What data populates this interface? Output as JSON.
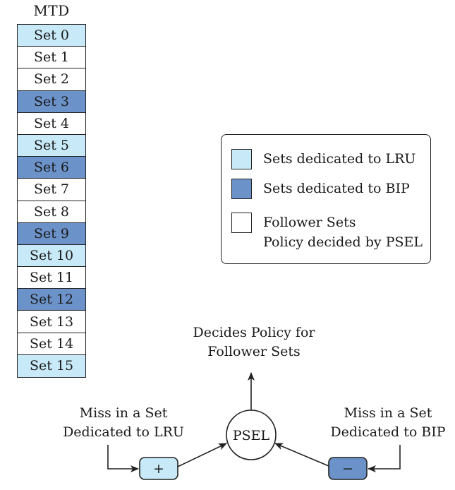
{
  "mtd": {
    "title": "MTD",
    "sets": [
      {
        "label": "Set 0",
        "kind": "lru"
      },
      {
        "label": "Set 1",
        "kind": "follower"
      },
      {
        "label": "Set 2",
        "kind": "follower"
      },
      {
        "label": "Set 3",
        "kind": "bip"
      },
      {
        "label": "Set 4",
        "kind": "follower"
      },
      {
        "label": "Set 5",
        "kind": "lru"
      },
      {
        "label": "Set 6",
        "kind": "bip"
      },
      {
        "label": "Set 7",
        "kind": "follower"
      },
      {
        "label": "Set 8",
        "kind": "follower"
      },
      {
        "label": "Set 9",
        "kind": "bip"
      },
      {
        "label": "Set 10",
        "kind": "lru"
      },
      {
        "label": "Set 11",
        "kind": "follower"
      },
      {
        "label": "Set 12",
        "kind": "bip"
      },
      {
        "label": "Set 13",
        "kind": "follower"
      },
      {
        "label": "Set 14",
        "kind": "follower"
      },
      {
        "label": "Set 15",
        "kind": "lru"
      }
    ]
  },
  "colors": {
    "lru": "#c8e9f7",
    "bip": "#6c93c9",
    "follower": "#ffffff"
  },
  "legend": {
    "lru": "Sets dedicated to LRU",
    "bip": "Sets dedicated to BIP",
    "follower_line1": "Follower Sets",
    "follower_line2": "Policy decided by PSEL"
  },
  "flow": {
    "decides_line1": "Decides Policy for",
    "decides_line2": "Follower Sets",
    "miss_lru_line1": "Miss in a Set",
    "miss_lru_line2": "Dedicated to LRU",
    "miss_bip_line1": "Miss in a Set",
    "miss_bip_line2": "Dedicated to BIP",
    "psel": "PSEL",
    "plus": "+",
    "minus": "−"
  }
}
